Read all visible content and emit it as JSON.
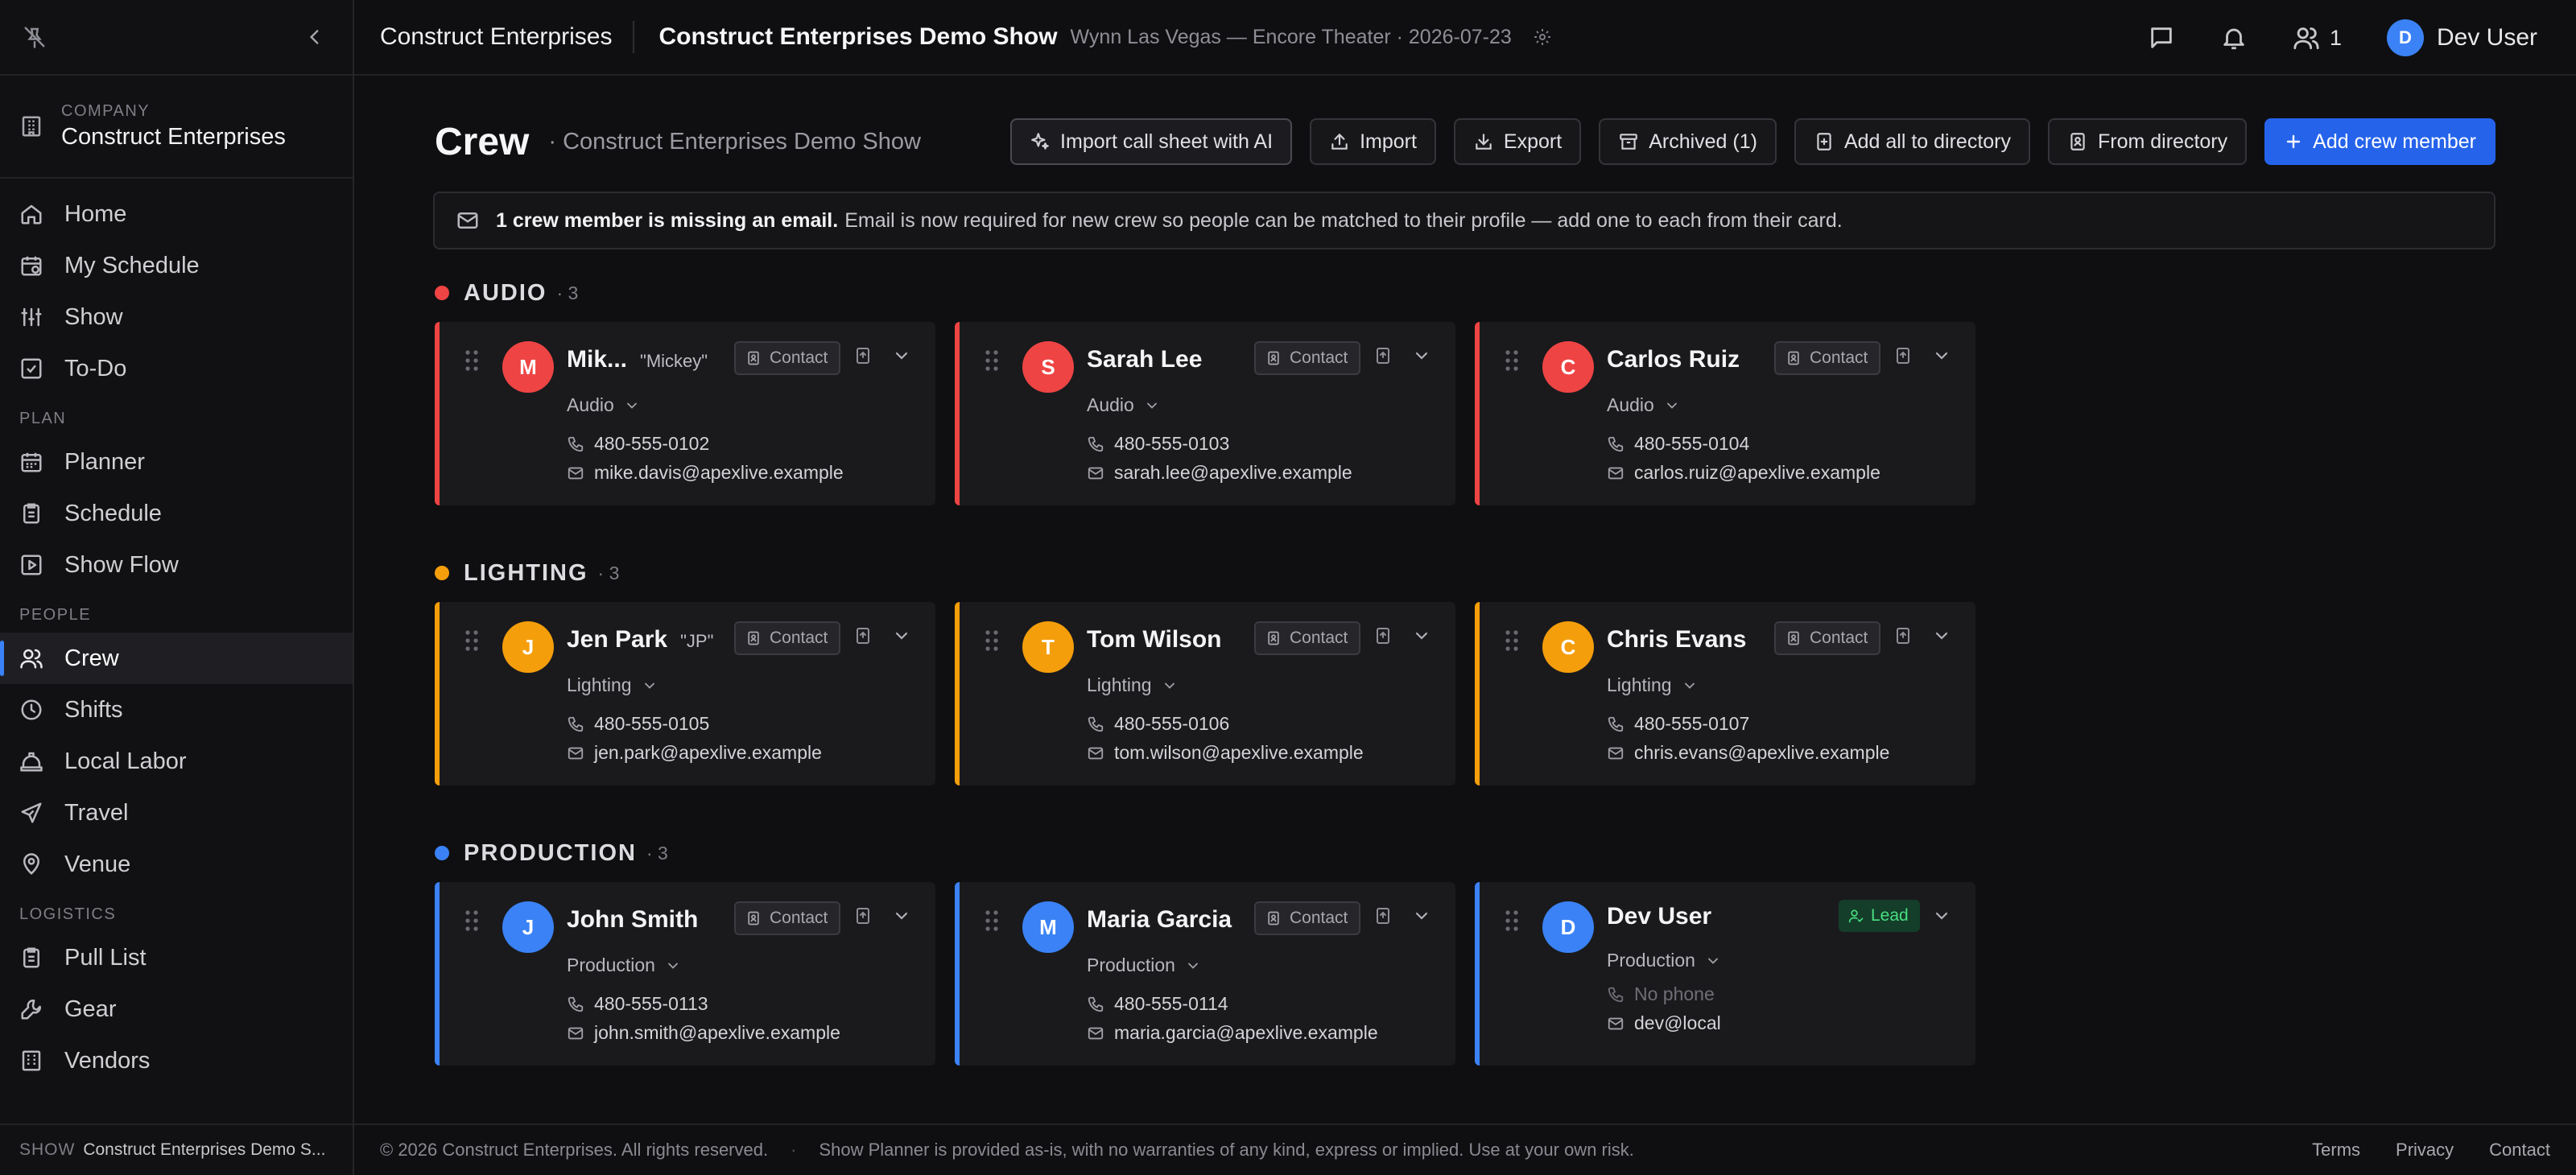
{
  "sidebar": {
    "company_label": "COMPANY",
    "company_name": "Construct Enterprises",
    "sections": {
      "plan": "PLAN",
      "people": "PEOPLE",
      "logistics": "LOGISTICS"
    },
    "items": {
      "home": "Home",
      "my_schedule": "My Schedule",
      "show": "Show",
      "todo": "To-Do",
      "planner": "Planner",
      "schedule": "Schedule",
      "show_flow": "Show Flow",
      "crew": "Crew",
      "shifts": "Shifts",
      "local_labor": "Local Labor",
      "travel": "Travel",
      "venue": "Venue",
      "pull_list": "Pull List",
      "gear": "Gear",
      "vendors": "Vendors"
    },
    "active_item": "crew",
    "bottom_label": "SHOW",
    "bottom_value": "Construct Enterprises Demo S..."
  },
  "topbar": {
    "company": "Construct Enterprises",
    "show_name": "Construct Enterprises Demo Show",
    "show_meta": "Wynn Las Vegas — Encore Theater · 2026-07-23",
    "people_count": "1",
    "user_initial": "D",
    "user_name": "Dev User"
  },
  "page": {
    "title": "Crew",
    "subtitle": "· Construct Enterprises Demo Show",
    "actions": {
      "import_ai": "Import call sheet with AI",
      "import": "Import",
      "export": "Export",
      "archived": "Archived (1)",
      "add_all": "Add all to directory",
      "from_directory": "From directory",
      "add_member": "Add crew member"
    },
    "notice_bold": "1 crew member is missing an email.",
    "notice_text": "Email is now required for new crew so people can be matched to their profile — add one to each from their card."
  },
  "contact_label": "Contact",
  "lead_label": "Lead",
  "groups": [
    {
      "name": "AUDIO",
      "count": "· 3",
      "color": "#ef4444",
      "members": [
        {
          "initial": "M",
          "name": "Mik...",
          "nickname": "\"Mickey\"",
          "role": "Audio",
          "phone": "480-555-0102",
          "email": "mike.davis@apexlive.example"
        },
        {
          "initial": "S",
          "name": "Sarah Lee",
          "nickname": "",
          "role": "Audio",
          "phone": "480-555-0103",
          "email": "sarah.lee@apexlive.example"
        },
        {
          "initial": "C",
          "name": "Carlos Ruiz",
          "nickname": "",
          "role": "Audio",
          "phone": "480-555-0104",
          "email": "carlos.ruiz@apexlive.example"
        }
      ]
    },
    {
      "name": "LIGHTING",
      "count": "· 3",
      "color": "#f59e0b",
      "members": [
        {
          "initial": "J",
          "name": "Jen Park",
          "nickname": "\"JP\"",
          "role": "Lighting",
          "phone": "480-555-0105",
          "email": "jen.park@apexlive.example"
        },
        {
          "initial": "T",
          "name": "Tom Wilson",
          "nickname": "",
          "role": "Lighting",
          "phone": "480-555-0106",
          "email": "tom.wilson@apexlive.example"
        },
        {
          "initial": "C",
          "name": "Chris Evans",
          "nickname": "",
          "role": "Lighting",
          "phone": "480-555-0107",
          "email": "chris.evans@apexlive.example"
        }
      ]
    },
    {
      "name": "PRODUCTION",
      "count": "· 3",
      "color": "#3b82f6",
      "members": [
        {
          "initial": "J",
          "name": "John Smith",
          "nickname": "",
          "role": "Production",
          "phone": "480-555-0113",
          "email": "john.smith@apexlive.example"
        },
        {
          "initial": "M",
          "name": "Maria Garcia",
          "nickname": "",
          "role": "Production",
          "phone": "480-555-0114",
          "email": "maria.garcia@apexlive.example"
        },
        {
          "initial": "D",
          "name": "Dev User",
          "nickname": "",
          "role": "Production",
          "phone": "No phone",
          "email": "dev@local",
          "is_lead": true
        }
      ]
    }
  ],
  "footer": {
    "copyright": "© 2026 Construct Enterprises. All rights reserved.",
    "disclaimer": "Show Planner is provided as-is, with no warranties of any kind, express or implied. Use at your own risk.",
    "terms": "Terms",
    "privacy": "Privacy",
    "contact": "Contact"
  }
}
